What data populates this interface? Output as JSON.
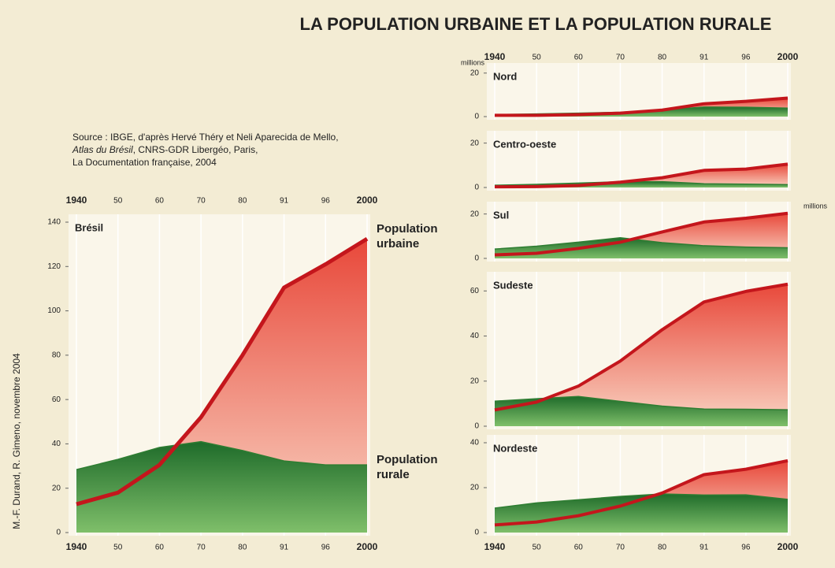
{
  "title": "LA POPULATION URBAINE ET LA POPULATION RURALE",
  "source": {
    "line1": "Source : IBGE, d'après Hervé Théry et Neli Aparecida de Mello,",
    "atlas": "Atlas du Brésil",
    "line2": ", CNRS-GDR Libergéo, Paris,",
    "line3": "La Documentation française, 2004"
  },
  "credit": "M.-F. Durand, R. Gimeno, novembre 2004",
  "chart_data": [
    {
      "type": "area",
      "title": "Brésil",
      "categories": [
        "1940",
        "50",
        "60",
        "70",
        "80",
        "91",
        "96",
        "2000"
      ],
      "ylim": [
        0,
        140
      ],
      "yticks": [
        0,
        20,
        40,
        60,
        80,
        100,
        120,
        140
      ],
      "series": [
        {
          "name": "Population urbaine",
          "color": "#c4161c",
          "values": [
            12.8,
            18,
            30.5,
            52,
            80,
            110.5,
            121,
            132.5
          ]
        },
        {
          "name": "Population rurale",
          "color": "#2e7d32",
          "values": [
            28.4,
            33,
            38.4,
            41,
            37,
            32.3,
            30.5,
            30.5
          ]
        }
      ]
    },
    {
      "type": "area",
      "title": "Nord",
      "ylabel": "millions",
      "categories": [
        "1940",
        "50",
        "60",
        "70",
        "80",
        "91",
        "96",
        "2000"
      ],
      "ylim": [
        0,
        21
      ],
      "yticks": [
        0,
        20
      ],
      "series": [
        {
          "color": "#c4161c",
          "values": [
            0.6,
            0.6,
            0.9,
            1.6,
            3.0,
            5.9,
            7.0,
            8.5
          ]
        },
        {
          "color": "#2e7d32",
          "values": [
            0.9,
            1.2,
            1.6,
            2.0,
            3.0,
            4.4,
            4.3,
            3.9
          ]
        }
      ]
    },
    {
      "type": "area",
      "title": "Centro-oeste",
      "categories": [
        "1940",
        "50",
        "60",
        "70",
        "80",
        "91",
        "96",
        "2000"
      ],
      "ylim": [
        0,
        22
      ],
      "yticks": [
        0,
        20
      ],
      "series": [
        {
          "color": "#c4161c",
          "values": [
            0.3,
            0.4,
            0.9,
            2.4,
            4.4,
            7.7,
            8.3,
            10.5
          ]
        },
        {
          "color": "#2e7d32",
          "values": [
            1.0,
            1.4,
            2.0,
            2.6,
            2.6,
            1.7,
            1.5,
            1.3
          ]
        }
      ]
    },
    {
      "type": "area",
      "title": "Sul",
      "ylabel": "millions",
      "categories": [
        "1940",
        "50",
        "60",
        "70",
        "80",
        "91",
        "96",
        "2000"
      ],
      "ylim": [
        0,
        22
      ],
      "yticks": [
        0,
        20
      ],
      "series": [
        {
          "color": "#c4161c",
          "values": [
            1.6,
            2.3,
            4.5,
            7.3,
            11.9,
            16.4,
            18.1,
            20.3
          ]
        },
        {
          "color": "#2e7d32",
          "values": [
            4.2,
            5.5,
            7.3,
            9.3,
            7.1,
            5.7,
            5.1,
            4.8
          ]
        }
      ]
    },
    {
      "type": "area",
      "title": "Sudeste",
      "categories": [
        "1940",
        "50",
        "60",
        "70",
        "80",
        "91",
        "96",
        "2000"
      ],
      "ylim": [
        0,
        65
      ],
      "yticks": [
        0,
        20,
        40,
        60
      ],
      "series": [
        {
          "color": "#c4161c",
          "values": [
            7.2,
            10.7,
            17.8,
            28.9,
            42.8,
            55.1,
            59.8,
            63
          ]
        },
        {
          "color": "#2e7d32",
          "values": [
            11.1,
            12.2,
            13.2,
            11.0,
            8.9,
            7.6,
            7.5,
            7.3
          ]
        }
      ]
    },
    {
      "type": "area",
      "title": "Nordeste",
      "categories": [
        "1940",
        "50",
        "60",
        "70",
        "80",
        "91",
        "96",
        "2000"
      ],
      "ylim": [
        0,
        40
      ],
      "yticks": [
        0,
        20,
        40
      ],
      "series": [
        {
          "color": "#c4161c",
          "values": [
            3.4,
            4.7,
            7.5,
            11.8,
            17.6,
            25.8,
            28.2,
            32
          ]
        },
        {
          "color": "#2e7d32",
          "values": [
            10.9,
            13.2,
            14.6,
            16.1,
            17.2,
            16.7,
            16.8,
            14.8
          ]
        }
      ]
    }
  ]
}
